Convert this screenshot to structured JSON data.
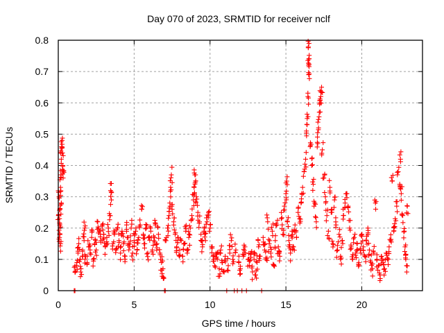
{
  "chart_data": {
    "type": "scatter",
    "title": "Day 070 of 2023, SRMTID for receiver nclf",
    "xlabel": "GPS time / hours",
    "ylabel": "SRMTID / TECUs",
    "xlim": [
      0,
      24
    ],
    "ylim": [
      0,
      0.8
    ],
    "xticks": [
      0,
      5,
      10,
      15,
      20
    ],
    "xtick_labels": [
      "0",
      "5",
      "10",
      "15",
      "20"
    ],
    "yticks": [
      0,
      0.1,
      0.2,
      0.3,
      0.4,
      0.5,
      0.6,
      0.7,
      0.8
    ],
    "ytick_labels": [
      "0",
      "0.1",
      "0.2",
      "0.3",
      "0.4",
      "0.5",
      "0.6",
      "0.7",
      "0.8"
    ],
    "grid": true,
    "legend": "none",
    "marker": "+",
    "marker_color": "#ff0000",
    "series": [
      {
        "name": "SRMTID",
        "points": [
          [
            0.02,
            0.24
          ],
          [
            0.05,
            0.3
          ],
          [
            0.08,
            0.23
          ],
          [
            0.1,
            0.18
          ],
          [
            0.12,
            0.26
          ],
          [
            0.15,
            0.33
          ],
          [
            0.18,
            0.37
          ],
          [
            0.2,
            0.42
          ],
          [
            0.22,
            0.46
          ],
          [
            0.25,
            0.48
          ],
          [
            0.27,
            0.44
          ],
          [
            0.3,
            0.4
          ],
          [
            0.32,
            0.36
          ],
          [
            0.15,
            0.15
          ],
          [
            0.08,
            0.17
          ],
          [
            0.2,
            0.28
          ],
          [
            1.05,
            0.0
          ],
          [
            1.1,
            0.0
          ],
          [
            1.1,
            0.06
          ],
          [
            1.2,
            0.08
          ],
          [
            1.3,
            0.12
          ],
          [
            1.35,
            0.15
          ],
          [
            1.45,
            0.1
          ],
          [
            1.5,
            0.07
          ],
          [
            1.6,
            0.13
          ],
          [
            1.7,
            0.16
          ],
          [
            1.75,
            0.2
          ],
          [
            1.8,
            0.11
          ],
          [
            1.9,
            0.09
          ],
          [
            2.0,
            0.14
          ],
          [
            2.1,
            0.12
          ],
          [
            2.2,
            0.17
          ],
          [
            2.3,
            0.1
          ],
          [
            2.4,
            0.15
          ],
          [
            2.5,
            0.13
          ],
          [
            2.6,
            0.22
          ],
          [
            2.7,
            0.19
          ],
          [
            2.8,
            0.16
          ],
          [
            2.9,
            0.21
          ],
          [
            3.0,
            0.18
          ],
          [
            3.1,
            0.14
          ],
          [
            3.2,
            0.17
          ],
          [
            3.3,
            0.2
          ],
          [
            3.4,
            0.24
          ],
          [
            3.45,
            0.32
          ],
          [
            3.5,
            0.29
          ],
          [
            3.6,
            0.15
          ],
          [
            3.7,
            0.18
          ],
          [
            3.8,
            0.13
          ],
          [
            3.9,
            0.2
          ],
          [
            4.0,
            0.16
          ],
          [
            4.1,
            0.12
          ],
          [
            4.2,
            0.19
          ],
          [
            4.3,
            0.15
          ],
          [
            4.4,
            0.11
          ],
          [
            4.5,
            0.21
          ],
          [
            4.6,
            0.17
          ],
          [
            4.7,
            0.14
          ],
          [
            4.8,
            0.2
          ],
          [
            4.9,
            0.12
          ],
          [
            5.0,
            0.16
          ],
          [
            5.1,
            0.19
          ],
          [
            5.2,
            0.13
          ],
          [
            5.3,
            0.17
          ],
          [
            5.4,
            0.21
          ],
          [
            5.5,
            0.26
          ],
          [
            5.6,
            0.18
          ],
          [
            5.7,
            0.15
          ],
          [
            5.8,
            0.2
          ],
          [
            5.9,
            0.12
          ],
          [
            6.0,
            0.17
          ],
          [
            6.1,
            0.19
          ],
          [
            6.2,
            0.13
          ],
          [
            6.3,
            0.16
          ],
          [
            6.4,
            0.21
          ],
          [
            6.5,
            0.15
          ],
          [
            6.6,
            0.18
          ],
          [
            6.7,
            0.12
          ],
          [
            6.8,
            0.09
          ],
          [
            6.9,
            0.07
          ],
          [
            6.95,
            0.04
          ],
          [
            7.0,
            0.0
          ],
          [
            7.05,
            0.0
          ],
          [
            7.1,
            0.16
          ],
          [
            7.2,
            0.2
          ],
          [
            7.3,
            0.24
          ],
          [
            7.35,
            0.28
          ],
          [
            7.4,
            0.33
          ],
          [
            7.45,
            0.37
          ],
          [
            7.5,
            0.26
          ],
          [
            7.6,
            0.22
          ],
          [
            7.7,
            0.18
          ],
          [
            7.8,
            0.14
          ],
          [
            7.9,
            0.17
          ],
          [
            8.0,
            0.13
          ],
          [
            8.1,
            0.16
          ],
          [
            8.2,
            0.11
          ],
          [
            8.3,
            0.15
          ],
          [
            8.4,
            0.19
          ],
          [
            8.5,
            0.12
          ],
          [
            8.6,
            0.17
          ],
          [
            8.7,
            0.2
          ],
          [
            8.8,
            0.24
          ],
          [
            8.9,
            0.29
          ],
          [
            8.95,
            0.33
          ],
          [
            9.0,
            0.37
          ],
          [
            9.05,
            0.35
          ],
          [
            9.1,
            0.3
          ],
          [
            9.2,
            0.25
          ],
          [
            9.3,
            0.22
          ],
          [
            9.4,
            0.18
          ],
          [
            9.5,
            0.14
          ],
          [
            9.6,
            0.19
          ],
          [
            9.7,
            0.16
          ],
          [
            9.8,
            0.22
          ],
          [
            9.9,
            0.25
          ],
          [
            10.0,
            0.2
          ],
          [
            10.1,
            0.14
          ],
          [
            10.2,
            0.11
          ],
          [
            10.3,
            0.08
          ],
          [
            10.4,
            0.12
          ],
          [
            10.5,
            0.1
          ],
          [
            10.6,
            0.07
          ],
          [
            10.7,
            0.13
          ],
          [
            10.8,
            0.09
          ],
          [
            10.9,
            0.06
          ],
          [
            11.0,
            0.11
          ],
          [
            11.1,
            0.0
          ],
          [
            11.2,
            0.08
          ],
          [
            11.3,
            0.12
          ],
          [
            11.4,
            0.16
          ],
          [
            11.5,
            0.1
          ],
          [
            11.6,
            0.0
          ],
          [
            11.7,
            0.13
          ],
          [
            11.8,
            0.0
          ],
          [
            11.9,
            0.09
          ],
          [
            12.0,
            0.07
          ],
          [
            12.1,
            0.0
          ],
          [
            12.2,
            0.11
          ],
          [
            12.3,
            0.14
          ],
          [
            12.4,
            0.0
          ],
          [
            12.5,
            0.1
          ],
          [
            12.6,
            0.08
          ],
          [
            12.7,
            0.12
          ],
          [
            12.8,
            0.06
          ],
          [
            12.9,
            0.1
          ],
          [
            13.0,
            0.05
          ],
          [
            13.1,
            0.09
          ],
          [
            13.2,
            0.14
          ],
          [
            13.3,
            0.11
          ],
          [
            13.4,
            0.0
          ],
          [
            13.5,
            0.17
          ],
          [
            13.6,
            0.13
          ],
          [
            13.7,
            0.1
          ],
          [
            13.8,
            0.22
          ],
          [
            13.9,
            0.15
          ],
          [
            14.0,
            0.12
          ],
          [
            14.1,
            0.19
          ],
          [
            14.2,
            0.08
          ],
          [
            14.3,
            0.16
          ],
          [
            14.4,
            0.21
          ],
          [
            14.5,
            0.14
          ],
          [
            14.6,
            0.11
          ],
          [
            14.7,
            0.23
          ],
          [
            14.8,
            0.18
          ],
          [
            14.9,
            0.27
          ],
          [
            15.0,
            0.31
          ],
          [
            15.05,
            0.35
          ],
          [
            15.1,
            0.22
          ],
          [
            15.2,
            0.16
          ],
          [
            15.3,
            0.12
          ],
          [
            15.4,
            0.19
          ],
          [
            15.5,
            0.14
          ],
          [
            15.6,
            0.21
          ],
          [
            15.7,
            0.17
          ],
          [
            15.8,
            0.25
          ],
          [
            15.9,
            0.23
          ],
          [
            16.0,
            0.28
          ],
          [
            16.1,
            0.33
          ],
          [
            16.2,
            0.38
          ],
          [
            16.3,
            0.42
          ],
          [
            16.35,
            0.51
          ],
          [
            16.4,
            0.55
          ],
          [
            16.45,
            0.62
          ],
          [
            16.5,
            0.69
          ],
          [
            16.5,
            0.72
          ],
          [
            16.5,
            0.74
          ],
          [
            16.52,
            0.79
          ],
          [
            16.6,
            0.46
          ],
          [
            16.7,
            0.4
          ],
          [
            16.8,
            0.34
          ],
          [
            16.9,
            0.28
          ],
          [
            17.0,
            0.22
          ],
          [
            17.1,
            0.47
          ],
          [
            17.15,
            0.52
          ],
          [
            17.2,
            0.57
          ],
          [
            17.25,
            0.6
          ],
          [
            17.3,
            0.62
          ],
          [
            17.35,
            0.65
          ],
          [
            17.4,
            0.45
          ],
          [
            17.5,
            0.36
          ],
          [
            17.6,
            0.3
          ],
          [
            17.7,
            0.24
          ],
          [
            17.8,
            0.19
          ],
          [
            17.9,
            0.33
          ],
          [
            18.0,
            0.26
          ],
          [
            18.1,
            0.15
          ],
          [
            18.2,
            0.29
          ],
          [
            18.3,
            0.21
          ],
          [
            18.4,
            0.13
          ],
          [
            18.5,
            0.18
          ],
          [
            18.6,
            0.11
          ],
          [
            18.7,
            0.16
          ],
          [
            18.8,
            0.24
          ],
          [
            18.9,
            0.28
          ],
          [
            19.0,
            0.31
          ],
          [
            19.1,
            0.27
          ],
          [
            19.2,
            0.2
          ],
          [
            19.3,
            0.14
          ],
          [
            19.4,
            0.1
          ],
          [
            19.5,
            0.17
          ],
          [
            19.6,
            0.12
          ],
          [
            19.7,
            0.15
          ],
          [
            19.8,
            0.09
          ],
          [
            19.9,
            0.13
          ],
          [
            20.0,
            0.18
          ],
          [
            20.1,
            0.14
          ],
          [
            20.2,
            0.11
          ],
          [
            20.3,
            0.16
          ],
          [
            20.4,
            0.2
          ],
          [
            20.5,
            0.13
          ],
          [
            20.6,
            0.09
          ],
          [
            20.7,
            0.07
          ],
          [
            20.8,
            0.12
          ],
          [
            20.9,
            0.28
          ],
          [
            21.0,
            0.1
          ],
          [
            21.1,
            0.08
          ],
          [
            21.2,
            0.05
          ],
          [
            21.3,
            0.11
          ],
          [
            21.4,
            0.09
          ],
          [
            21.5,
            0.07
          ],
          [
            21.6,
            0.12
          ],
          [
            21.7,
            0.1
          ],
          [
            21.8,
            0.14
          ],
          [
            21.9,
            0.16
          ],
          [
            22.0,
            0.35
          ],
          [
            22.1,
            0.19
          ],
          [
            22.2,
            0.23
          ],
          [
            22.3,
            0.27
          ],
          [
            22.4,
            0.38
          ],
          [
            22.5,
            0.34
          ],
          [
            22.55,
            0.42
          ],
          [
            22.6,
            0.31
          ],
          [
            22.7,
            0.24
          ],
          [
            22.8,
            0.19
          ],
          [
            22.85,
            0.14
          ],
          [
            22.9,
            0.1
          ],
          [
            22.95,
            0.08
          ],
          [
            23.0,
            0.27
          ]
        ]
      }
    ]
  }
}
